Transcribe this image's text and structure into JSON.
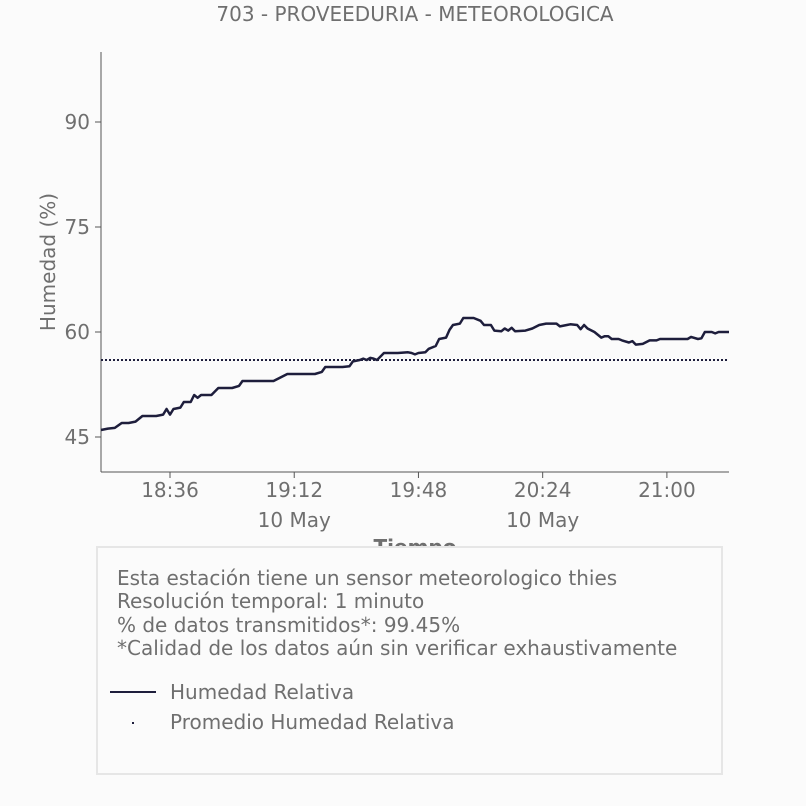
{
  "chart_data": {
    "type": "line",
    "title": "703 - PROVEEDURIA - METEOROLOGICA",
    "xlabel": "Tiempo",
    "ylabel": "Humedad (%)",
    "ylim": [
      40,
      100
    ],
    "yticks": [
      45,
      60,
      75,
      90
    ],
    "xlim": [
      "2024-05-10 18:16",
      "2024-05-10 21:18"
    ],
    "xticks": [
      {
        "time": "18:36",
        "label": "18:36",
        "sublabel": ""
      },
      {
        "time": "19:12",
        "label": "19:12",
        "sublabel": "10 May"
      },
      {
        "time": "19:48",
        "label": "19:48",
        "sublabel": ""
      },
      {
        "time": "20:24",
        "label": "20:24",
        "sublabel": "10 May"
      },
      {
        "time": "21:00",
        "label": "21:00",
        "sublabel": ""
      }
    ],
    "grid": false,
    "series": [
      {
        "name": "Humedad Relativa",
        "color": "#1e1e3c",
        "style": "solid",
        "points": [
          [
            "18:16",
            46.0
          ],
          [
            "18:18",
            46.2
          ],
          [
            "18:20",
            46.3
          ],
          [
            "18:22",
            47.0
          ],
          [
            "18:24",
            47.0
          ],
          [
            "18:26",
            47.2
          ],
          [
            "18:28",
            48.0
          ],
          [
            "18:30",
            48.0
          ],
          [
            "18:32",
            48.0
          ],
          [
            "18:34",
            48.2
          ],
          [
            "18:35",
            49.0
          ],
          [
            "18:36",
            48.2
          ],
          [
            "18:37",
            49.0
          ],
          [
            "18:39",
            49.2
          ],
          [
            "18:40",
            50.0
          ],
          [
            "18:42",
            50.0
          ],
          [
            "18:43",
            51.0
          ],
          [
            "18:44",
            50.6
          ],
          [
            "18:45",
            51.0
          ],
          [
            "18:48",
            51.0
          ],
          [
            "18:50",
            52.0
          ],
          [
            "18:54",
            52.0
          ],
          [
            "18:56",
            52.3
          ],
          [
            "18:57",
            53.0
          ],
          [
            "19:00",
            53.0
          ],
          [
            "19:06",
            53.0
          ],
          [
            "19:08",
            53.5
          ],
          [
            "19:10",
            54.0
          ],
          [
            "19:18",
            54.0
          ],
          [
            "19:20",
            54.3
          ],
          [
            "19:21",
            55.0
          ],
          [
            "19:26",
            55.0
          ],
          [
            "19:28",
            55.1
          ],
          [
            "19:29",
            55.8
          ],
          [
            "19:31",
            56.0
          ],
          [
            "19:32",
            56.2
          ],
          [
            "19:33",
            56.0
          ],
          [
            "19:34",
            56.3
          ],
          [
            "19:35",
            56.2
          ],
          [
            "19:36",
            56.0
          ],
          [
            "19:38",
            57.0
          ],
          [
            "19:42",
            57.0
          ],
          [
            "19:45",
            57.1
          ],
          [
            "19:46",
            57.0
          ],
          [
            "19:47",
            56.8
          ],
          [
            "19:48",
            57.0
          ],
          [
            "19:50",
            57.1
          ],
          [
            "19:51",
            57.6
          ],
          [
            "19:53",
            58.0
          ],
          [
            "19:54",
            59.0
          ],
          [
            "19:56",
            59.2
          ],
          [
            "19:57",
            60.3
          ],
          [
            "19:58",
            61.0
          ],
          [
            "20:00",
            61.2
          ],
          [
            "20:01",
            62.0
          ],
          [
            "20:04",
            62.0
          ],
          [
            "20:06",
            61.6
          ],
          [
            "20:07",
            61.0
          ],
          [
            "20:09",
            61.0
          ],
          [
            "20:10",
            60.2
          ],
          [
            "20:12",
            60.1
          ],
          [
            "20:13",
            60.5
          ],
          [
            "20:14",
            60.2
          ],
          [
            "20:15",
            60.6
          ],
          [
            "20:16",
            60.1
          ],
          [
            "20:19",
            60.2
          ],
          [
            "20:21",
            60.5
          ],
          [
            "20:23",
            61.0
          ],
          [
            "20:25",
            61.2
          ],
          [
            "20:28",
            61.2
          ],
          [
            "20:29",
            60.8
          ],
          [
            "20:31",
            61.0
          ],
          [
            "20:32",
            61.1
          ],
          [
            "20:34",
            61.0
          ],
          [
            "20:35",
            60.4
          ],
          [
            "20:36",
            61.0
          ],
          [
            "20:37",
            60.5
          ],
          [
            "20:39",
            60.0
          ],
          [
            "20:41",
            59.2
          ],
          [
            "20:42",
            59.4
          ],
          [
            "20:43",
            59.4
          ],
          [
            "20:44",
            59.0
          ],
          [
            "20:46",
            59.0
          ],
          [
            "20:47",
            58.8
          ],
          [
            "20:49",
            58.5
          ],
          [
            "20:50",
            58.7
          ],
          [
            "20:51",
            58.2
          ],
          [
            "20:53",
            58.3
          ],
          [
            "20:55",
            58.8
          ],
          [
            "20:57",
            58.8
          ],
          [
            "20:58",
            59.0
          ],
          [
            "21:06",
            59.0
          ],
          [
            "21:07",
            59.3
          ],
          [
            "21:09",
            59.0
          ],
          [
            "21:10",
            59.1
          ],
          [
            "21:11",
            60.0
          ],
          [
            "21:13",
            60.0
          ],
          [
            "21:14",
            59.8
          ],
          [
            "21:15",
            60.0
          ],
          [
            "21:18",
            60.0
          ]
        ]
      },
      {
        "name": "Promedio Humedad Relativa",
        "color": "#1e1e3c",
        "style": "dotted",
        "value": 56.0
      }
    ]
  },
  "info": {
    "lines": [
      "Esta estación tiene un sensor meteorologico thies",
      "Resolución temporal: 1 minuto",
      "% de datos transmitidos*: 99.45%",
      "*Calidad de los datos aún sin verificar exhaustivamente"
    ]
  },
  "legend": {
    "items": [
      {
        "label": "Humedad Relativa"
      },
      {
        "label": "Promedio Humedad Relativa"
      }
    ]
  }
}
